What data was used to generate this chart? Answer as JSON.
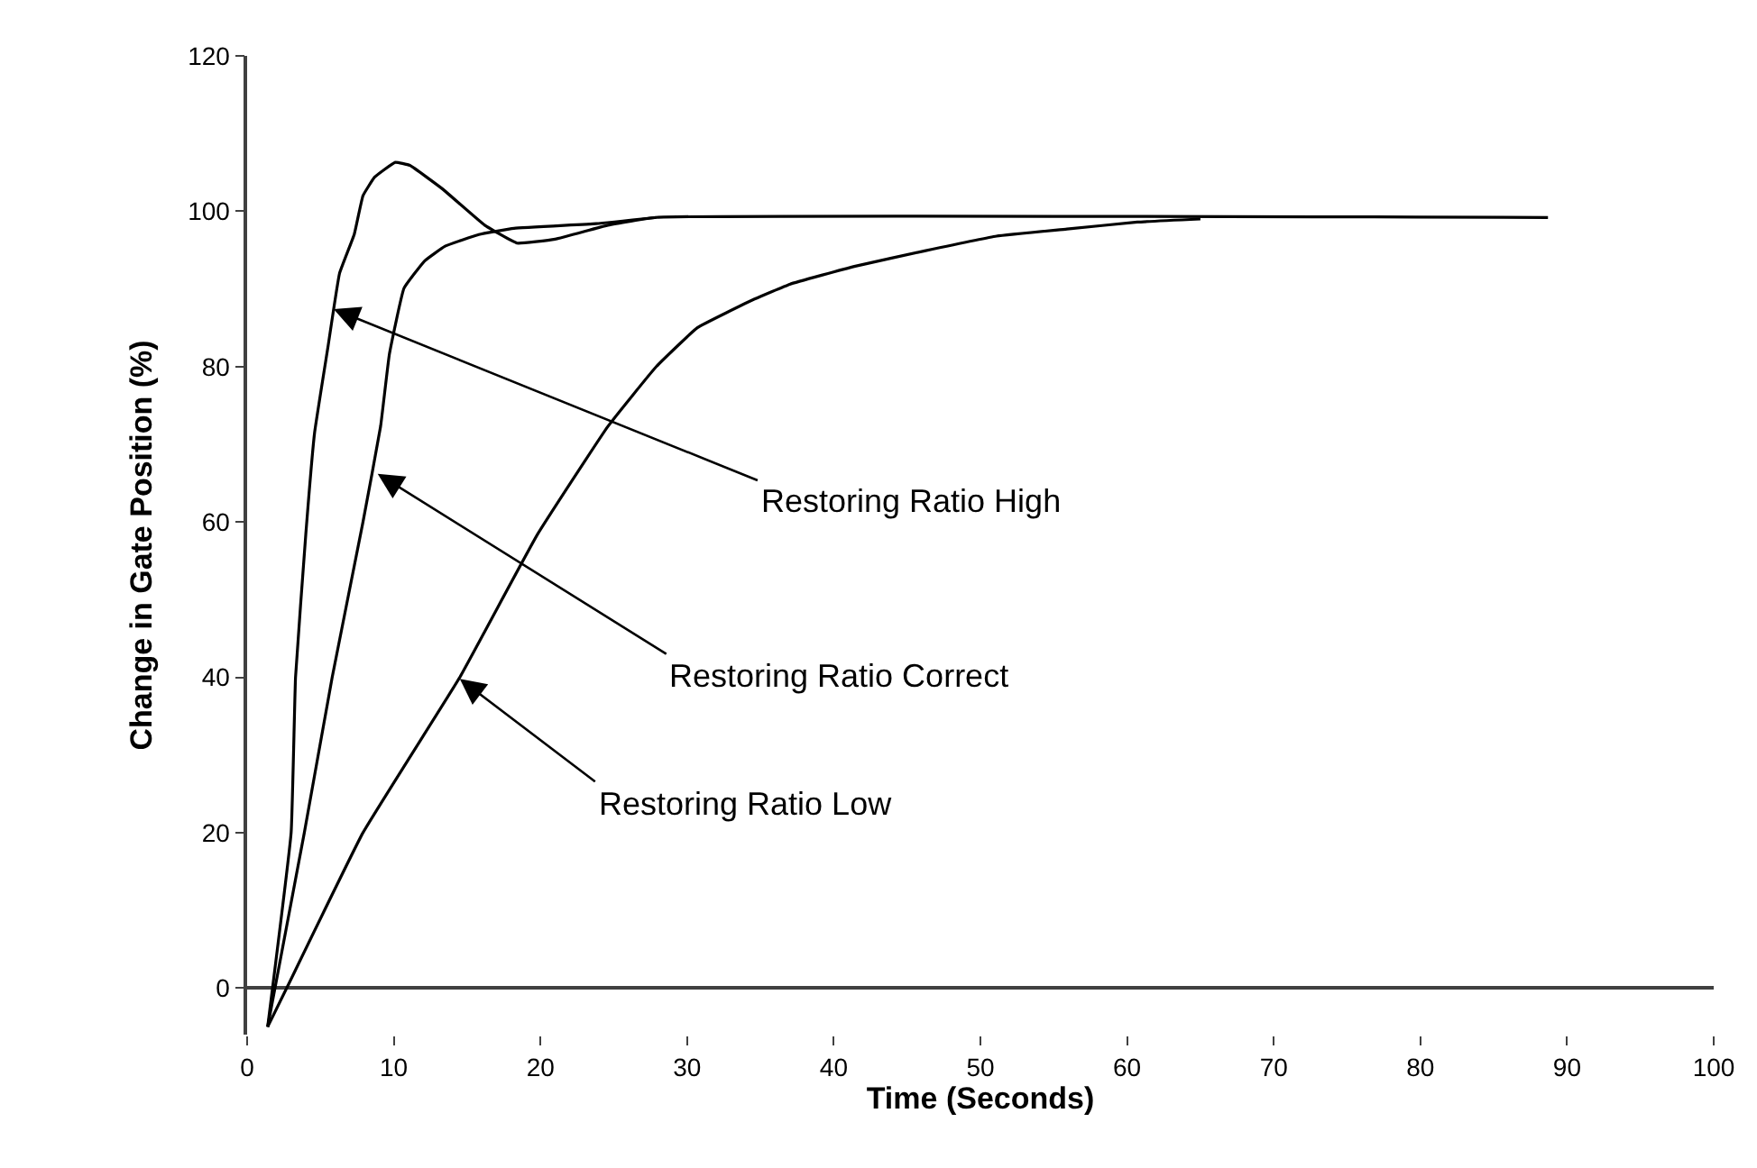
{
  "chart_data": {
    "type": "line",
    "xlabel": "Time (Seconds)",
    "ylabel": "Change in Gate Position (%)",
    "xlim": [
      0,
      100
    ],
    "xticks": [
      0,
      10,
      20,
      30,
      40,
      50,
      60,
      70,
      80,
      90,
      100
    ],
    "ylim": [
      -6,
      120
    ],
    "yticks": [
      0,
      20,
      40,
      60,
      80,
      100,
      120
    ],
    "marker": "none",
    "line_style": "solid",
    "series": [
      {
        "color": "#000000",
        "x": [
          1.4,
          3.0,
          3.3,
          4.0,
          4.6,
          5.5,
          6.3,
          7.3,
          7.9,
          8.7,
          10.1,
          11.1,
          13.3,
          16.2,
          18.4,
          21.0,
          24.6,
          27.9,
          88.7
        ],
        "values": [
          -5,
          20,
          40,
          58.4,
          71.5,
          82.4,
          92,
          97,
          102,
          104.4,
          106.3,
          105.9,
          102.9,
          98.2,
          95.9,
          96.4,
          98.2,
          99.2,
          99.2
        ]
      },
      {
        "color": "#000000",
        "x": [
          1.4,
          3.9,
          5.8,
          7.9,
          9.1,
          9.7,
          10.7,
          12.1,
          13.5,
          15.8,
          18.2,
          23.8,
          27.9
        ],
        "values": [
          -5,
          20,
          40,
          60,
          72.3,
          81.6,
          90.1,
          93.6,
          95.5,
          97,
          97.8,
          98.4,
          99.2
        ]
      },
      {
        "color": "#000000",
        "x": [
          1.4,
          2.7,
          7.9,
          14.5,
          19.8,
          24.6,
          27.9,
          30.7,
          34.6,
          37.0,
          41.4,
          46.2,
          51.1,
          55.9,
          60.7,
          65.0
        ],
        "values": [
          -5,
          0,
          20,
          40,
          58.4,
          72.3,
          80,
          85,
          88.7,
          90.6,
          92.9,
          94.9,
          96.8,
          97.7,
          98.6,
          99
        ]
      }
    ],
    "annotations": [
      {
        "text": "Restoring Ratio High",
        "x": 5.9,
        "y": 87.4
      },
      {
        "text": "Restoring Ratio Correct",
        "x": 8.9,
        "y": 66.2
      },
      {
        "text": "Restoring Ratio Low",
        "x": 14.5,
        "y": 39.8
      }
    ]
  }
}
